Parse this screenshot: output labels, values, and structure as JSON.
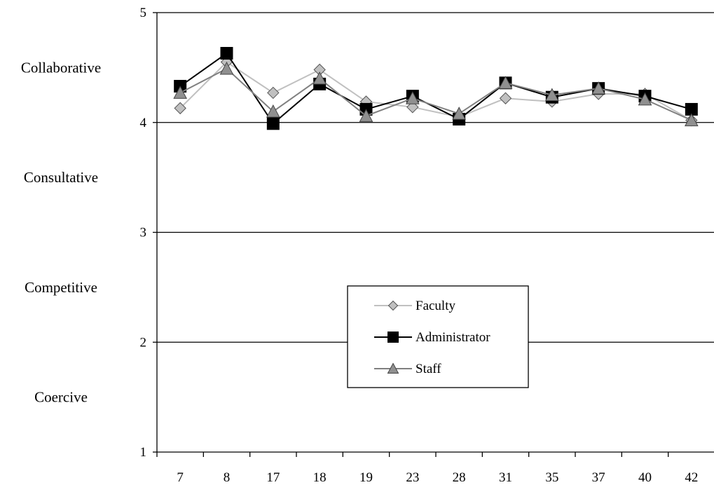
{
  "chart_data": {
    "type": "line",
    "categories": [
      "7",
      "8",
      "17",
      "18",
      "19",
      "23",
      "28",
      "31",
      "35",
      "37",
      "40",
      "42"
    ],
    "ylim": [
      1,
      5
    ],
    "yticks": [
      "1",
      "2",
      "3",
      "4",
      "5"
    ],
    "grid": "horizontal lines at 2, 3 and 4",
    "legend_position": "center",
    "band_labels": [
      {
        "label": "Collaborative",
        "y": 4.5
      },
      {
        "label": "Consultative",
        "y": 3.5
      },
      {
        "label": "Competitive",
        "y": 2.5
      },
      {
        "label": "Coercive",
        "y": 1.5
      }
    ],
    "series": [
      {
        "name": "Faculty",
        "marker": "diamond",
        "line_color": "#c0c0c0",
        "fill_color": "#c0c0c0",
        "values": [
          4.13,
          4.55,
          4.27,
          4.48,
          4.19,
          4.14,
          4.05,
          4.22,
          4.19,
          4.26,
          4.26,
          4.02
        ]
      },
      {
        "name": "Administrator",
        "marker": "square",
        "line_color": "#000000",
        "fill_color": "#000000",
        "values": [
          4.33,
          4.63,
          3.99,
          4.35,
          4.12,
          4.24,
          4.03,
          4.36,
          4.23,
          4.31,
          4.24,
          4.12
        ]
      },
      {
        "name": "Staff",
        "marker": "triangle",
        "line_color": "#808080",
        "fill_color": "#909090",
        "values": [
          4.27,
          4.49,
          4.1,
          4.4,
          4.06,
          4.22,
          4.08,
          4.36,
          4.25,
          4.31,
          4.21,
          4.02
        ]
      }
    ]
  }
}
